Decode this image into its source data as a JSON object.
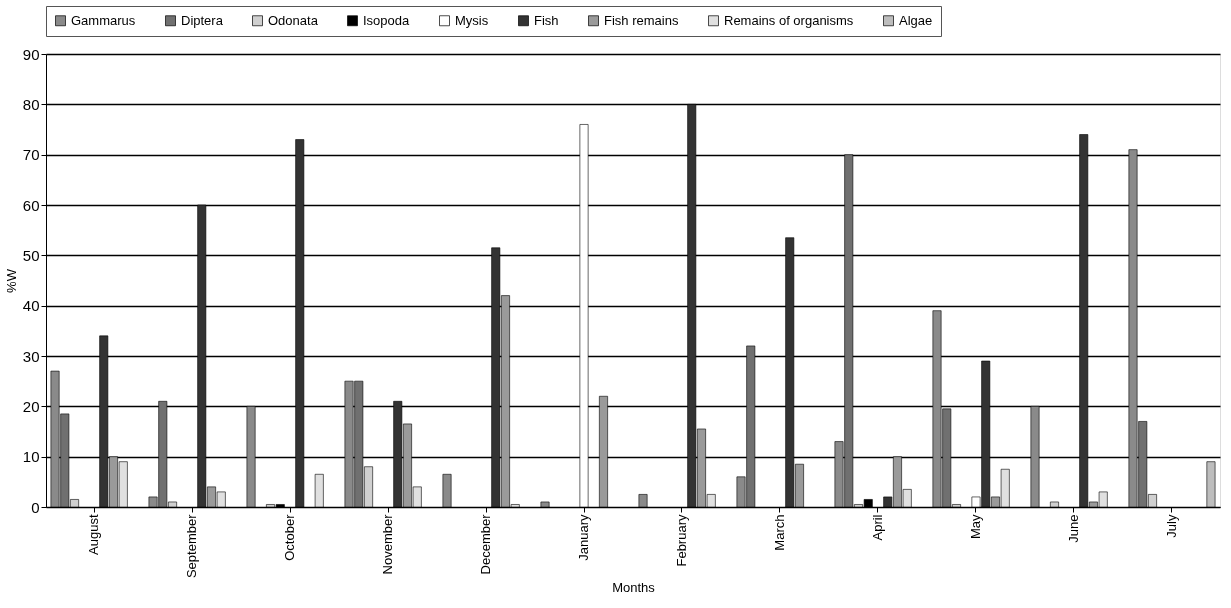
{
  "chart_data": {
    "type": "bar",
    "xlabel": "Months",
    "ylabel": "%W",
    "categories": [
      "August",
      "September",
      "October",
      "November",
      "December",
      "January",
      "February",
      "March",
      "April",
      "May",
      "June",
      "July"
    ],
    "series": [
      {
        "name": "Gammarus",
        "color": "#8a8a8a",
        "values": [
          27,
          2,
          20,
          25,
          6.5,
          1,
          2.5,
          6,
          13,
          39,
          20,
          71
        ]
      },
      {
        "name": "Diptera",
        "color": "#707070",
        "values": [
          18.5,
          21,
          null,
          25,
          null,
          null,
          null,
          32,
          70,
          19.5,
          null,
          17
        ]
      },
      {
        "name": "Odonata",
        "color": "#d0d0d0",
        "values": [
          1.5,
          1,
          0.5,
          8,
          null,
          null,
          null,
          null,
          0.5,
          0.5,
          1,
          2.5
        ]
      },
      {
        "name": "Isopoda",
        "color": "#000000",
        "values": [
          null,
          null,
          0.5,
          null,
          null,
          null,
          null,
          null,
          1.5,
          null,
          null,
          null
        ]
      },
      {
        "name": "Mysis",
        "color": "#ffffff",
        "values": [
          null,
          null,
          null,
          null,
          null,
          76,
          null,
          null,
          null,
          2,
          null,
          null
        ]
      },
      {
        "name": "Fish",
        "color": "#333333",
        "values": [
          34,
          60,
          73,
          21,
          51.5,
          null,
          80,
          53.5,
          2,
          29,
          74,
          null
        ]
      },
      {
        "name": "Fish remains",
        "color": "#9a9a9a",
        "values": [
          10,
          4,
          null,
          16.5,
          42,
          22,
          15.5,
          8.5,
          10,
          2,
          1,
          null
        ]
      },
      {
        "name": "Remains of organisms",
        "color": "#e0e0e0",
        "values": [
          9,
          3,
          6.5,
          4,
          0.5,
          null,
          2.5,
          null,
          3.5,
          7.5,
          3,
          null
        ]
      },
      {
        "name": "Algae",
        "color": "#bdbdbd",
        "values": [
          null,
          null,
          null,
          null,
          null,
          null,
          null,
          null,
          null,
          null,
          null,
          9
        ]
      }
    ],
    "ylim": [
      0,
      90
    ],
    "yticks": [
      0,
      10,
      20,
      30,
      40,
      50,
      60,
      70,
      80,
      90
    ],
    "grid": "y",
    "legend": "top"
  }
}
